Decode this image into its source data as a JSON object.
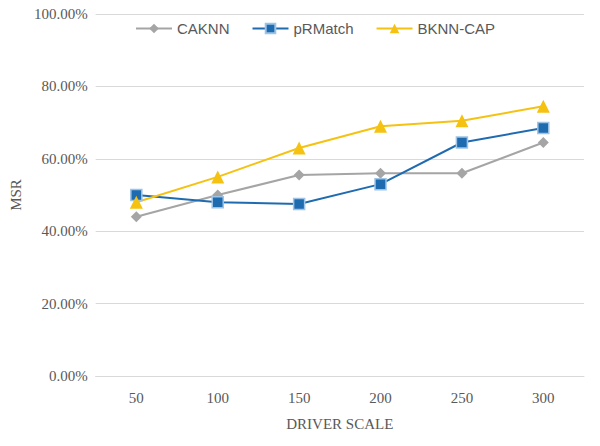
{
  "chart_data": {
    "type": "line",
    "x_label": "DRIVER SCALE",
    "y_label": "MSR",
    "categories": [
      "50",
      "100",
      "150",
      "200",
      "250",
      "300"
    ],
    "series": [
      {
        "name": "CAKNN",
        "color": "#a5a5a5",
        "marker": "diamond",
        "line_style": "solid",
        "values": [
          44,
          50,
          55.5,
          56,
          56,
          64.5
        ]
      },
      {
        "name": "pRMatch",
        "color": "#1f6bb0",
        "marker": "square",
        "line_style": "solid",
        "values": [
          50,
          48,
          47.5,
          53,
          64.5,
          68.5
        ]
      },
      {
        "name": "BKNN-CAP",
        "color": "#f5c211",
        "marker": "triangle",
        "line_style": "solid",
        "values": [
          48,
          55,
          63,
          69,
          70.5,
          74.5
        ]
      }
    ],
    "ylim": [
      0,
      100
    ],
    "yticks": [
      {
        "value": 0,
        "label": "0.00%"
      },
      {
        "value": 20,
        "label": "20.00%"
      },
      {
        "value": 40,
        "label": "40.00%"
      },
      {
        "value": 60,
        "label": "60.00%"
      },
      {
        "value": 80,
        "label": "80.00%"
      },
      {
        "value": 100,
        "label": "100.00%"
      }
    ],
    "grid": true,
    "legend": "top"
  }
}
